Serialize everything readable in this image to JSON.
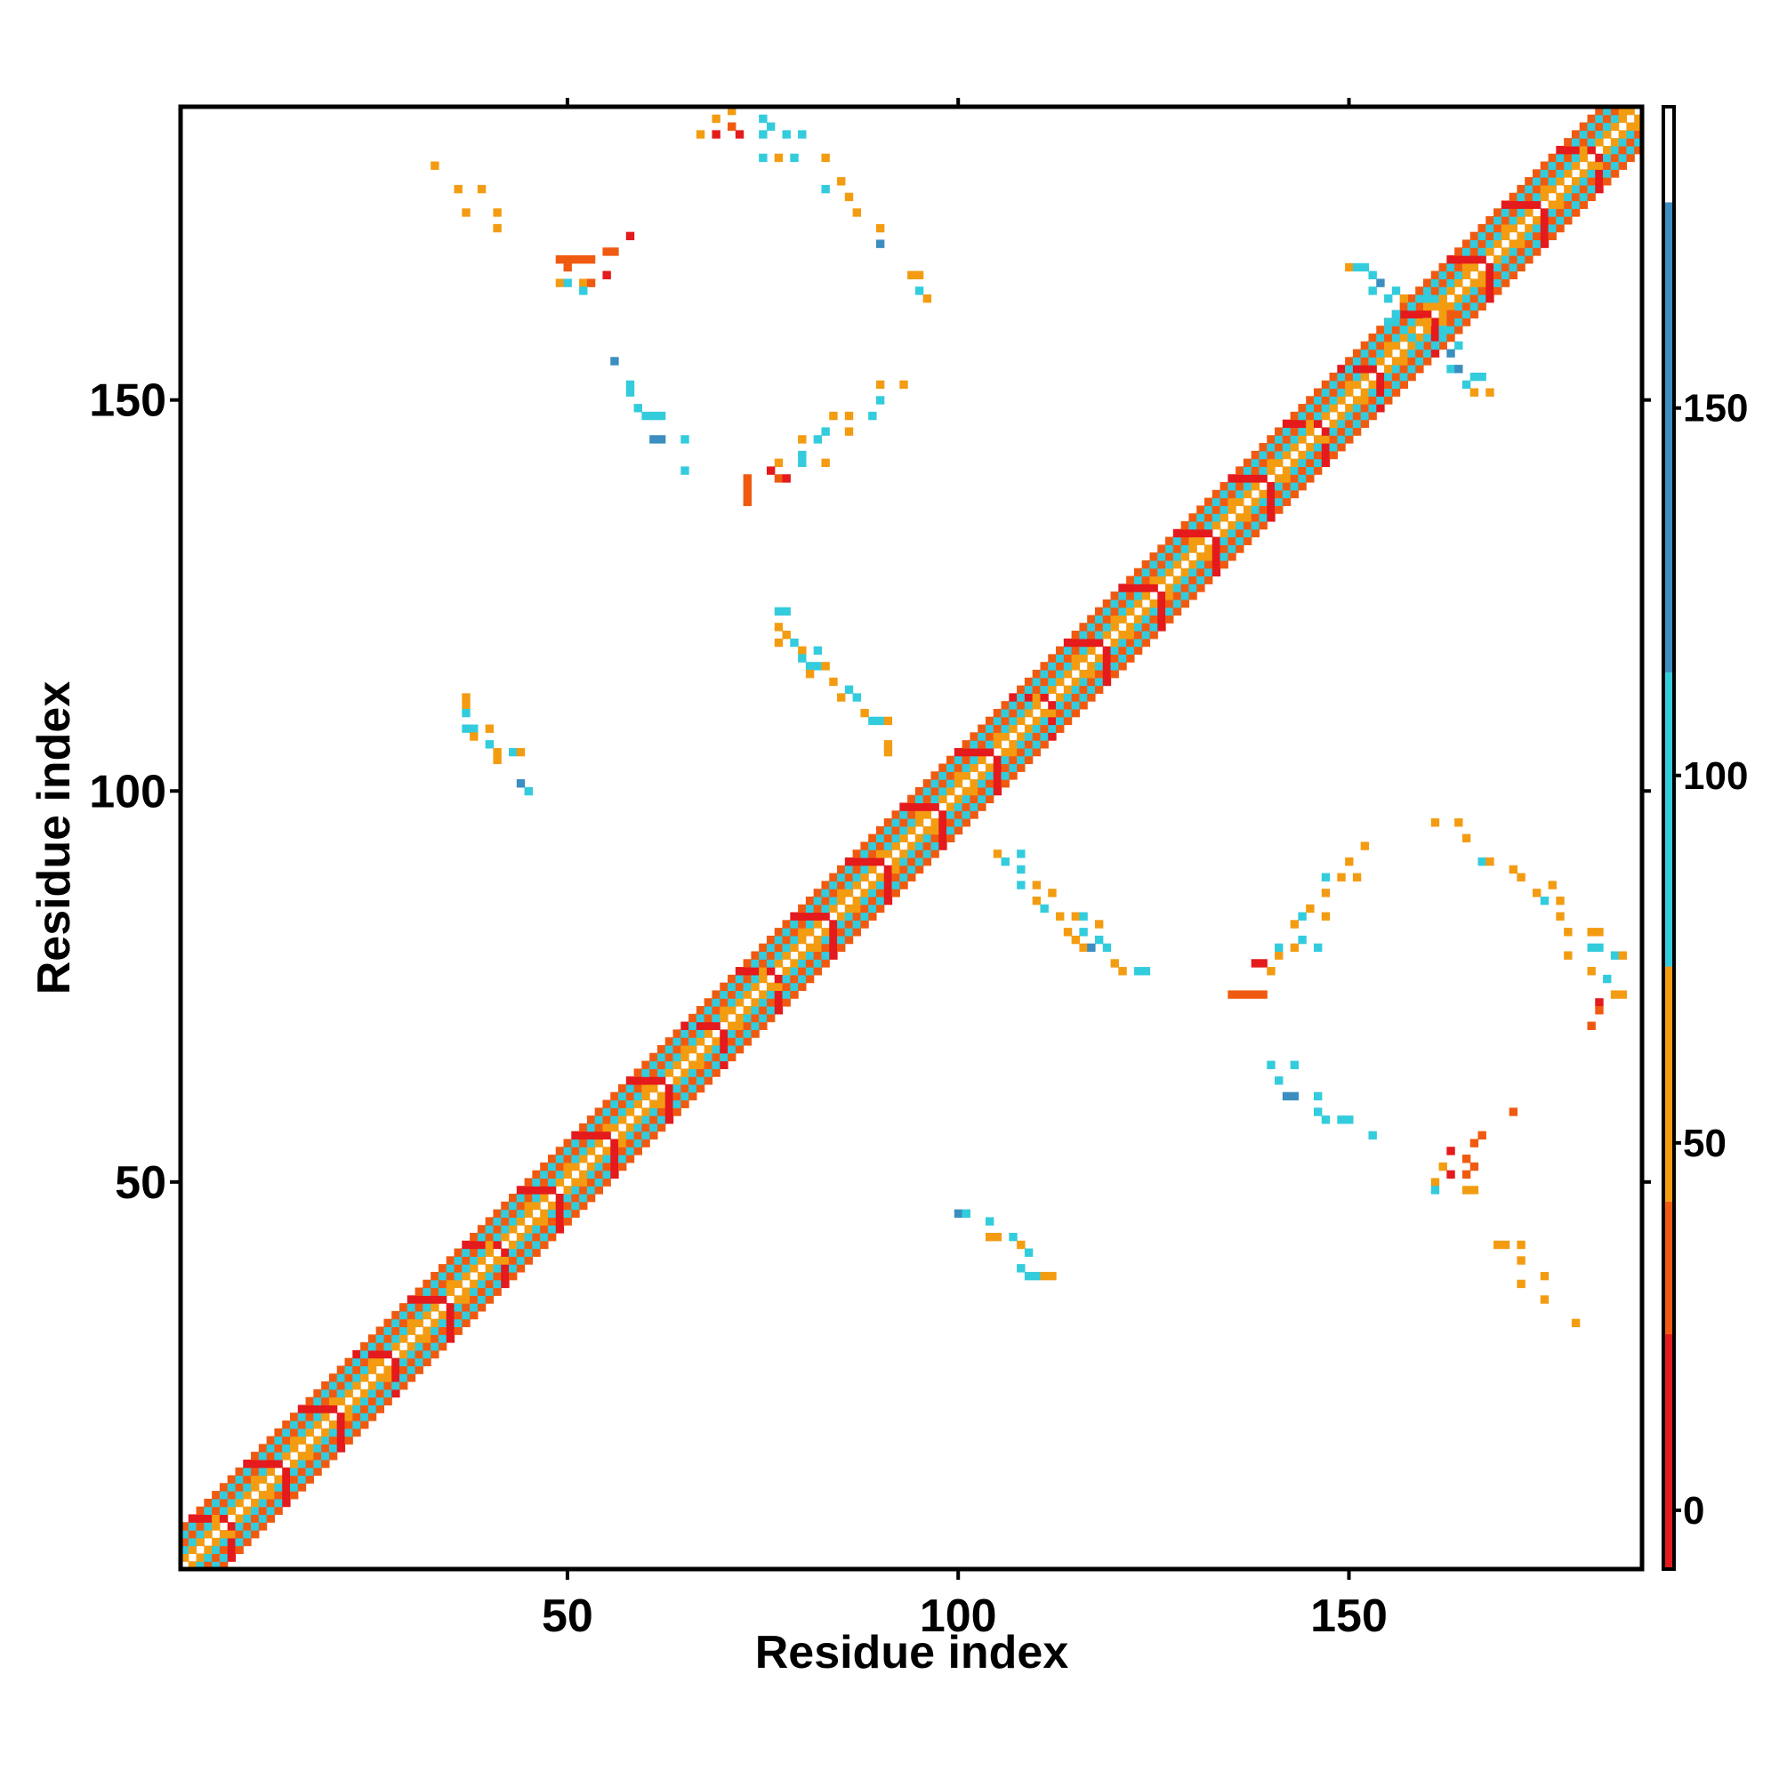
{
  "chart_data": {
    "type": "heatmap",
    "title": "",
    "xlabel": "Residue index",
    "ylabel": "Residue index",
    "xlim": [
      1,
      187
    ],
    "ylim": [
      1,
      187
    ],
    "x_ticks": [
      50,
      100,
      150
    ],
    "y_ticks": [
      50,
      100,
      150
    ],
    "grid": false,
    "colorbar": {
      "ticks": [
        0,
        50,
        100,
        150
      ],
      "range": [
        -8,
        191
      ],
      "bands": [
        {
          "from": -8,
          "to": 24,
          "color": "#e41a1c"
        },
        {
          "from": 24,
          "to": 42,
          "color": "#f05a10"
        },
        {
          "from": 42,
          "to": 74,
          "color": "#f39c12"
        },
        {
          "from": 74,
          "to": 114,
          "color": "#33ccdd"
        },
        {
          "from": 114,
          "to": 178,
          "color": "#3c8ec0"
        },
        {
          "from": 178,
          "to": 191,
          "color": "#ffffff"
        }
      ]
    },
    "diagonal_band": {
      "start": 1,
      "end": 187,
      "half_width": 5
    },
    "contacts": [
      {
        "x": 33,
        "y": 180,
        "v": 55
      },
      {
        "x": 36,
        "y": 177,
        "v": 55
      },
      {
        "x": 39,
        "y": 177,
        "v": 60
      },
      {
        "x": 37,
        "y": 174,
        "v": 55
      },
      {
        "x": 41,
        "y": 174,
        "v": 55
      },
      {
        "x": 41,
        "y": 172,
        "v": 50
      },
      {
        "x": 49,
        "y": 168,
        "v": 40
      },
      {
        "x": 50,
        "y": 168,
        "v": 35
      },
      {
        "x": 51,
        "y": 168,
        "v": 40
      },
      {
        "x": 52,
        "y": 168,
        "v": 35
      },
      {
        "x": 53,
        "y": 168,
        "v": 30
      },
      {
        "x": 55,
        "y": 169,
        "v": 35
      },
      {
        "x": 56,
        "y": 169,
        "v": 30
      },
      {
        "x": 58,
        "y": 171,
        "v": 20
      },
      {
        "x": 49,
        "y": 165,
        "v": 45
      },
      {
        "x": 50,
        "y": 165,
        "v": 80
      },
      {
        "x": 52,
        "y": 165,
        "v": 45
      },
      {
        "x": 53,
        "y": 165,
        "v": 35
      },
      {
        "x": 55,
        "y": 166,
        "v": 10
      },
      {
        "x": 52,
        "y": 164,
        "v": 85
      },
      {
        "x": 50,
        "y": 167,
        "v": 40
      },
      {
        "x": 67,
        "y": 184,
        "v": 60
      },
      {
        "x": 69,
        "y": 186,
        "v": 55
      },
      {
        "x": 71,
        "y": 187,
        "v": 60
      },
      {
        "x": 69,
        "y": 184,
        "v": 10
      },
      {
        "x": 72,
        "y": 184,
        "v": 15
      },
      {
        "x": 71,
        "y": 185,
        "v": 30
      },
      {
        "x": 75,
        "y": 186,
        "v": 90
      },
      {
        "x": 75,
        "y": 184,
        "v": 95
      },
      {
        "x": 76,
        "y": 185,
        "v": 90
      },
      {
        "x": 78,
        "y": 184,
        "v": 90
      },
      {
        "x": 80,
        "y": 184,
        "v": 85
      },
      {
        "x": 75,
        "y": 181,
        "v": 85
      },
      {
        "x": 77,
        "y": 181,
        "v": 55
      },
      {
        "x": 79,
        "y": 181,
        "v": 90
      },
      {
        "x": 83,
        "y": 181,
        "v": 55
      },
      {
        "x": 83,
        "y": 177,
        "v": 90
      },
      {
        "x": 85,
        "y": 178,
        "v": 55
      },
      {
        "x": 86,
        "y": 176,
        "v": 55
      },
      {
        "x": 87,
        "y": 174,
        "v": 60
      },
      {
        "x": 90,
        "y": 172,
        "v": 55
      },
      {
        "x": 90,
        "y": 170,
        "v": 120
      },
      {
        "x": 94,
        "y": 166,
        "v": 55
      },
      {
        "x": 95,
        "y": 166,
        "v": 60
      },
      {
        "x": 95,
        "y": 164,
        "v": 90
      },
      {
        "x": 96,
        "y": 163,
        "v": 55
      },
      {
        "x": 56,
        "y": 155,
        "v": 120
      },
      {
        "x": 58,
        "y": 152,
        "v": 100
      },
      {
        "x": 58,
        "y": 151,
        "v": 110
      },
      {
        "x": 59,
        "y": 149,
        "v": 100
      },
      {
        "x": 60,
        "y": 148,
        "v": 90
      },
      {
        "x": 61,
        "y": 148,
        "v": 95
      },
      {
        "x": 62,
        "y": 148,
        "v": 95
      },
      {
        "x": 61,
        "y": 145,
        "v": 120
      },
      {
        "x": 62,
        "y": 145,
        "v": 120
      },
      {
        "x": 65,
        "y": 145,
        "v": 100
      },
      {
        "x": 65,
        "y": 141,
        "v": 110
      },
      {
        "x": 90,
        "y": 152,
        "v": 55
      },
      {
        "x": 93,
        "y": 152,
        "v": 50
      },
      {
        "x": 90,
        "y": 150,
        "v": 95
      },
      {
        "x": 89,
        "y": 148,
        "v": 95
      },
      {
        "x": 86,
        "y": 148,
        "v": 55
      },
      {
        "x": 84,
        "y": 148,
        "v": 55
      },
      {
        "x": 83,
        "y": 146,
        "v": 90
      },
      {
        "x": 86,
        "y": 146,
        "v": 55
      },
      {
        "x": 80,
        "y": 145,
        "v": 55
      },
      {
        "x": 82,
        "y": 145,
        "v": 90
      },
      {
        "x": 80,
        "y": 143,
        "v": 100
      },
      {
        "x": 83,
        "y": 142,
        "v": 55
      },
      {
        "x": 77,
        "y": 142,
        "v": 55
      },
      {
        "x": 80,
        "y": 142,
        "v": 90
      },
      {
        "x": 76,
        "y": 141,
        "v": 10
      },
      {
        "x": 77,
        "y": 140,
        "v": 30
      },
      {
        "x": 78,
        "y": 140,
        "v": 20
      },
      {
        "x": 73,
        "y": 140,
        "v": 30
      },
      {
        "x": 73,
        "y": 139,
        "v": 35
      },
      {
        "x": 73,
        "y": 138,
        "v": 30
      },
      {
        "x": 73,
        "y": 137,
        "v": 35
      },
      {
        "x": 77,
        "y": 123,
        "v": 95
      },
      {
        "x": 78,
        "y": 123,
        "v": 90
      },
      {
        "x": 77,
        "y": 121,
        "v": 55
      },
      {
        "x": 78,
        "y": 120,
        "v": 55
      },
      {
        "x": 77,
        "y": 119,
        "v": 60
      },
      {
        "x": 79,
        "y": 119,
        "v": 90
      },
      {
        "x": 80,
        "y": 118,
        "v": 55
      },
      {
        "x": 82,
        "y": 118,
        "v": 90
      },
      {
        "x": 80,
        "y": 117,
        "v": 95
      },
      {
        "x": 81,
        "y": 116,
        "v": 90
      },
      {
        "x": 82,
        "y": 116,
        "v": 90
      },
      {
        "x": 83,
        "y": 116,
        "v": 60
      },
      {
        "x": 81,
        "y": 115,
        "v": 60
      },
      {
        "x": 84,
        "y": 114,
        "v": 55
      },
      {
        "x": 86,
        "y": 113,
        "v": 90
      },
      {
        "x": 85,
        "y": 112,
        "v": 55
      },
      {
        "x": 87,
        "y": 112,
        "v": 90
      },
      {
        "x": 88,
        "y": 110,
        "v": 60
      },
      {
        "x": 89,
        "y": 109,
        "v": 95
      },
      {
        "x": 90,
        "y": 109,
        "v": 90
      },
      {
        "x": 91,
        "y": 109,
        "v": 55
      },
      {
        "x": 91,
        "y": 106,
        "v": 60
      },
      {
        "x": 91,
        "y": 105,
        "v": 55
      },
      {
        "x": 37,
        "y": 112,
        "v": 60
      },
      {
        "x": 37,
        "y": 111,
        "v": 55
      },
      {
        "x": 37,
        "y": 110,
        "v": 90
      },
      {
        "x": 37,
        "y": 108,
        "v": 90
      },
      {
        "x": 38,
        "y": 108,
        "v": 90
      },
      {
        "x": 40,
        "y": 108,
        "v": 60
      },
      {
        "x": 38,
        "y": 107,
        "v": 55
      },
      {
        "x": 40,
        "y": 106,
        "v": 90
      },
      {
        "x": 41,
        "y": 105,
        "v": 60
      },
      {
        "x": 43,
        "y": 105,
        "v": 90
      },
      {
        "x": 44,
        "y": 105,
        "v": 55
      },
      {
        "x": 41,
        "y": 104,
        "v": 55
      },
      {
        "x": 44,
        "y": 101,
        "v": 120
      },
      {
        "x": 45,
        "y": 100,
        "v": 110
      },
      {
        "x": 105,
        "y": 92,
        "v": 55
      },
      {
        "x": 106,
        "y": 91,
        "v": 90
      },
      {
        "x": 108,
        "y": 92,
        "v": 90
      },
      {
        "x": 108,
        "y": 90,
        "v": 90
      },
      {
        "x": 108,
        "y": 88,
        "v": 90
      },
      {
        "x": 110,
        "y": 88,
        "v": 55
      },
      {
        "x": 112,
        "y": 87,
        "v": 55
      },
      {
        "x": 110,
        "y": 86,
        "v": 55
      },
      {
        "x": 111,
        "y": 85,
        "v": 90
      },
      {
        "x": 113,
        "y": 84,
        "v": 55
      },
      {
        "x": 115,
        "y": 84,
        "v": 55
      },
      {
        "x": 116,
        "y": 84,
        "v": 90
      },
      {
        "x": 118,
        "y": 83,
        "v": 55
      },
      {
        "x": 116,
        "y": 82,
        "v": 90
      },
      {
        "x": 114,
        "y": 82,
        "v": 55
      },
      {
        "x": 115,
        "y": 81,
        "v": 60
      },
      {
        "x": 116,
        "y": 80,
        "v": 55
      },
      {
        "x": 117,
        "y": 80,
        "v": 120
      },
      {
        "x": 118,
        "y": 81,
        "v": 90
      },
      {
        "x": 119,
        "y": 80,
        "v": 90
      },
      {
        "x": 120,
        "y": 78,
        "v": 55
      },
      {
        "x": 121,
        "y": 77,
        "v": 55
      },
      {
        "x": 123,
        "y": 77,
        "v": 90
      },
      {
        "x": 124,
        "y": 77,
        "v": 90
      },
      {
        "x": 135,
        "y": 74,
        "v": 35
      },
      {
        "x": 136,
        "y": 74,
        "v": 35
      },
      {
        "x": 137,
        "y": 74,
        "v": 40
      },
      {
        "x": 138,
        "y": 74,
        "v": 35
      },
      {
        "x": 139,
        "y": 74,
        "v": 35
      },
      {
        "x": 138,
        "y": 78,
        "v": 10
      },
      {
        "x": 139,
        "y": 78,
        "v": 15
      },
      {
        "x": 140,
        "y": 77,
        "v": 55
      },
      {
        "x": 141,
        "y": 79,
        "v": 60
      },
      {
        "x": 141,
        "y": 80,
        "v": 90
      },
      {
        "x": 143,
        "y": 80,
        "v": 55
      },
      {
        "x": 144,
        "y": 81,
        "v": 90
      },
      {
        "x": 146,
        "y": 80,
        "v": 90
      },
      {
        "x": 143,
        "y": 83,
        "v": 55
      },
      {
        "x": 144,
        "y": 84,
        "v": 90
      },
      {
        "x": 145,
        "y": 85,
        "v": 60
      },
      {
        "x": 147,
        "y": 84,
        "v": 55
      },
      {
        "x": 147,
        "y": 87,
        "v": 55
      },
      {
        "x": 147,
        "y": 89,
        "v": 90
      },
      {
        "x": 149,
        "y": 89,
        "v": 55
      },
      {
        "x": 151,
        "y": 89,
        "v": 55
      },
      {
        "x": 150,
        "y": 91,
        "v": 60
      },
      {
        "x": 152,
        "y": 93,
        "v": 55
      },
      {
        "x": 161,
        "y": 96,
        "v": 55
      },
      {
        "x": 164,
        "y": 96,
        "v": 55
      },
      {
        "x": 165,
        "y": 94,
        "v": 55
      },
      {
        "x": 167,
        "y": 91,
        "v": 90
      },
      {
        "x": 168,
        "y": 91,
        "v": 55
      },
      {
        "x": 171,
        "y": 90,
        "v": 60
      },
      {
        "x": 172,
        "y": 89,
        "v": 55
      },
      {
        "x": 174,
        "y": 87,
        "v": 55
      },
      {
        "x": 176,
        "y": 88,
        "v": 60
      },
      {
        "x": 175,
        "y": 86,
        "v": 90
      },
      {
        "x": 177,
        "y": 86,
        "v": 60
      },
      {
        "x": 177,
        "y": 84,
        "v": 55
      },
      {
        "x": 178,
        "y": 82,
        "v": 55
      },
      {
        "x": 181,
        "y": 82,
        "v": 60
      },
      {
        "x": 182,
        "y": 82,
        "v": 55
      },
      {
        "x": 181,
        "y": 80,
        "v": 90
      },
      {
        "x": 182,
        "y": 80,
        "v": 90
      },
      {
        "x": 184,
        "y": 79,
        "v": 90
      },
      {
        "x": 185,
        "y": 79,
        "v": 55
      },
      {
        "x": 178,
        "y": 79,
        "v": 55
      },
      {
        "x": 181,
        "y": 77,
        "v": 55
      },
      {
        "x": 183,
        "y": 76,
        "v": 90
      },
      {
        "x": 184,
        "y": 74,
        "v": 55
      },
      {
        "x": 185,
        "y": 74,
        "v": 60
      },
      {
        "x": 182,
        "y": 73,
        "v": 10
      },
      {
        "x": 182,
        "y": 72,
        "v": 35
      },
      {
        "x": 181,
        "y": 70,
        "v": 40
      },
      {
        "x": 140,
        "y": 65,
        "v": 90
      },
      {
        "x": 143,
        "y": 65,
        "v": 90
      },
      {
        "x": 141,
        "y": 63,
        "v": 90
      },
      {
        "x": 142,
        "y": 61,
        "v": 120
      },
      {
        "x": 143,
        "y": 61,
        "v": 120
      },
      {
        "x": 146,
        "y": 61,
        "v": 90
      },
      {
        "x": 146,
        "y": 59,
        "v": 110
      },
      {
        "x": 147,
        "y": 58,
        "v": 100
      },
      {
        "x": 149,
        "y": 58,
        "v": 95
      },
      {
        "x": 150,
        "y": 58,
        "v": 95
      },
      {
        "x": 153,
        "y": 56,
        "v": 110
      },
      {
        "x": 171,
        "y": 59,
        "v": 35
      },
      {
        "x": 167,
        "y": 56,
        "v": 30
      },
      {
        "x": 166,
        "y": 55,
        "v": 35
      },
      {
        "x": 163,
        "y": 54,
        "v": 10
      },
      {
        "x": 165,
        "y": 53,
        "v": 40
      },
      {
        "x": 162,
        "y": 52,
        "v": 55
      },
      {
        "x": 163,
        "y": 51,
        "v": 20
      },
      {
        "x": 165,
        "y": 51,
        "v": 30
      },
      {
        "x": 166,
        "y": 52,
        "v": 35
      },
      {
        "x": 161,
        "y": 50,
        "v": 60
      },
      {
        "x": 161,
        "y": 49,
        "v": 90
      },
      {
        "x": 165,
        "y": 49,
        "v": 55
      },
      {
        "x": 166,
        "y": 49,
        "v": 60
      },
      {
        "x": 169,
        "y": 42,
        "v": 60
      },
      {
        "x": 170,
        "y": 42,
        "v": 55
      },
      {
        "x": 172,
        "y": 42,
        "v": 60
      },
      {
        "x": 172,
        "y": 40,
        "v": 55
      },
      {
        "x": 175,
        "y": 38,
        "v": 55
      },
      {
        "x": 172,
        "y": 37,
        "v": 55
      },
      {
        "x": 175,
        "y": 35,
        "v": 55
      },
      {
        "x": 179,
        "y": 32,
        "v": 55
      },
      {
        "x": 100,
        "y": 46,
        "v": 120
      },
      {
        "x": 101,
        "y": 46,
        "v": 110
      },
      {
        "x": 104,
        "y": 45,
        "v": 90
      },
      {
        "x": 104,
        "y": 43,
        "v": 55
      },
      {
        "x": 105,
        "y": 43,
        "v": 60
      },
      {
        "x": 107,
        "y": 43,
        "v": 90
      },
      {
        "x": 108,
        "y": 42,
        "v": 55
      },
      {
        "x": 109,
        "y": 41,
        "v": 90
      },
      {
        "x": 108,
        "y": 39,
        "v": 90
      },
      {
        "x": 109,
        "y": 38,
        "v": 90
      },
      {
        "x": 110,
        "y": 38,
        "v": 90
      },
      {
        "x": 111,
        "y": 38,
        "v": 55
      },
      {
        "x": 112,
        "y": 38,
        "v": 55
      },
      {
        "x": 150,
        "y": 167,
        "v": 55
      },
      {
        "x": 151,
        "y": 167,
        "v": 90
      },
      {
        "x": 152,
        "y": 167,
        "v": 90
      },
      {
        "x": 153,
        "y": 166,
        "v": 90
      },
      {
        "x": 153,
        "y": 164,
        "v": 90
      },
      {
        "x": 154,
        "y": 165,
        "v": 120
      },
      {
        "x": 155,
        "y": 163,
        "v": 95
      },
      {
        "x": 156,
        "y": 164,
        "v": 90
      },
      {
        "x": 157,
        "y": 163,
        "v": 55
      },
      {
        "x": 158,
        "y": 162,
        "v": 90
      },
      {
        "x": 156,
        "y": 161,
        "v": 95
      },
      {
        "x": 155,
        "y": 160,
        "v": 90
      },
      {
        "x": 157,
        "y": 159,
        "v": 95
      },
      {
        "x": 158,
        "y": 158,
        "v": 95
      },
      {
        "x": 159,
        "y": 157,
        "v": 95
      },
      {
        "x": 161,
        "y": 157,
        "v": 90
      },
      {
        "x": 163,
        "y": 156,
        "v": 120
      },
      {
        "x": 164,
        "y": 157,
        "v": 90
      },
      {
        "x": 163,
        "y": 154,
        "v": 90
      },
      {
        "x": 164,
        "y": 154,
        "v": 120
      },
      {
        "x": 166,
        "y": 153,
        "v": 90
      },
      {
        "x": 167,
        "y": 153,
        "v": 95
      },
      {
        "x": 165,
        "y": 152,
        "v": 90
      },
      {
        "x": 166,
        "y": 151,
        "v": 55
      },
      {
        "x": 168,
        "y": 151,
        "v": 55
      },
      {
        "x": 162,
        "y": 162,
        "v": 55
      },
      {
        "x": 163,
        "y": 161,
        "v": 35
      },
      {
        "x": 160,
        "y": 160,
        "v": 55
      },
      {
        "x": 162,
        "y": 159,
        "v": 90
      },
      {
        "x": 160,
        "y": 163,
        "v": 95
      }
    ]
  }
}
